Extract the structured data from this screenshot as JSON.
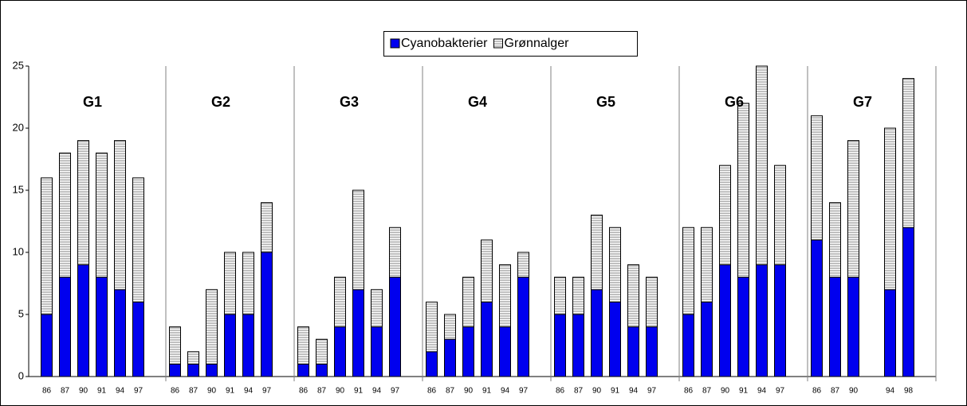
{
  "chart_data": {
    "type": "bar",
    "stacked": true,
    "group_labels": [
      "G1",
      "G2",
      "G3",
      "G4",
      "G5",
      "G6",
      "G7"
    ],
    "categories": [
      "86",
      "87",
      "90",
      "91",
      "94",
      "97",
      "86",
      "87",
      "90",
      "91",
      "94",
      "97",
      "86",
      "87",
      "90",
      "91",
      "94",
      "97",
      "86",
      "87",
      "90",
      "91",
      "94",
      "97",
      "86",
      "87",
      "90",
      "91",
      "94",
      "97",
      "86",
      "87",
      "90",
      "91",
      "94",
      "97",
      "86",
      "87",
      "90",
      null,
      "94",
      "98"
    ],
    "series": [
      {
        "name": "Cyanobakterier",
        "color": "#0000ee",
        "values": [
          5,
          8,
          9,
          8,
          7,
          6,
          1,
          1,
          1,
          5,
          5,
          10,
          1,
          1,
          4,
          7,
          4,
          8,
          2,
          3,
          4,
          6,
          4,
          8,
          5,
          5,
          7,
          6,
          4,
          4,
          5,
          6,
          9,
          8,
          9,
          9,
          11,
          8,
          8,
          null,
          7,
          12
        ]
      },
      {
        "name": "Grønnalger",
        "color": "#808080",
        "values": [
          11,
          10,
          10,
          10,
          12,
          10,
          3,
          1,
          6,
          5,
          5,
          4,
          3,
          2,
          4,
          8,
          3,
          4,
          4,
          2,
          4,
          5,
          5,
          2,
          3,
          3,
          6,
          6,
          5,
          4,
          7,
          6,
          8,
          14,
          16,
          8,
          10,
          6,
          11,
          null,
          13,
          12
        ]
      }
    ],
    "ylim": [
      0,
      25
    ],
    "yticks": [
      0,
      5,
      10,
      15,
      20,
      25
    ]
  }
}
